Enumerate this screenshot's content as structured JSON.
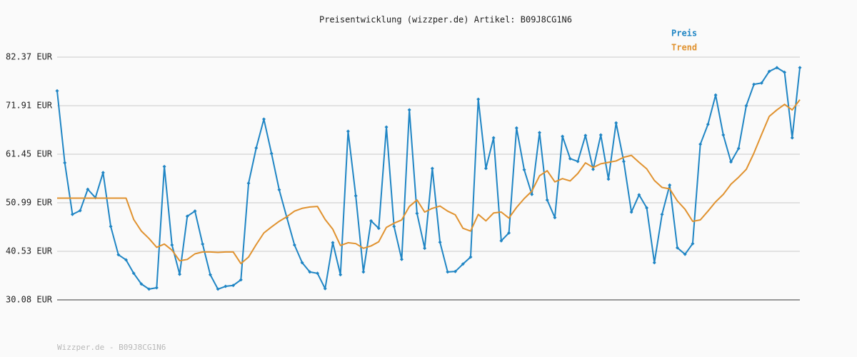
{
  "chart_data": {
    "type": "line",
    "title": "Preisentwicklung (wizzper.de) Artikel: B09J8CG1N6",
    "footer": "Wizzper.de - B09J8CG1N6",
    "ylim": [
      30.08,
      82.37
    ],
    "yticks": [
      {
        "value": 30.08,
        "label": "30.08 EUR"
      },
      {
        "value": 40.53,
        "label": "40.53 EUR"
      },
      {
        "value": 50.99,
        "label": "50.99 EUR"
      },
      {
        "value": 61.45,
        "label": "61.45 EUR"
      },
      {
        "value": 71.91,
        "label": "71.91 EUR"
      },
      {
        "value": 82.37,
        "label": "82.37 EUR"
      }
    ],
    "grid": true,
    "legend": "top-right",
    "series": [
      {
        "name": "Preis",
        "color": "#1f85c4",
        "markers": true,
        "values": [
          75.1,
          59.6,
          48.5,
          49.3,
          53.9,
          52.1,
          57.5,
          45.9,
          39.8,
          38.7,
          35.8,
          33.5,
          32.4,
          32.7,
          58.8,
          41.9,
          35.6,
          48.1,
          49.2,
          42.1,
          35.5,
          32.4,
          33.0,
          33.2,
          34.4,
          55.2,
          62.8,
          69.0,
          61.6,
          53.8,
          47.8,
          41.9,
          38.1,
          36.1,
          35.8,
          32.5,
          42.4,
          35.5,
          66.4,
          52.5,
          36.1,
          47.1,
          45.5,
          67.3,
          45.9,
          38.8,
          71.0,
          48.7,
          41.2,
          58.4,
          42.5,
          36.1,
          36.2,
          37.8,
          39.3,
          73.3,
          58.4,
          65.0,
          42.8,
          44.5,
          67.1,
          58.1,
          52.8,
          66.1,
          51.6,
          47.8,
          65.3,
          60.5,
          59.9,
          65.5,
          58.2,
          65.6,
          56.1,
          68.2,
          59.9,
          49.0,
          52.7,
          49.9,
          38.1,
          48.5,
          54.8,
          41.3,
          39.9,
          42.2,
          63.6,
          67.9,
          74.2,
          65.6,
          59.8,
          62.7,
          71.9,
          76.5,
          76.8,
          79.3,
          80.1,
          79.1,
          65.0,
          80.1
        ]
      },
      {
        "name": "Trend",
        "color": "#e0922f",
        "markers": false,
        "values": [
          52.0,
          52.0,
          52.0,
          52.0,
          52.0,
          52.0,
          52.0,
          52.0,
          52.0,
          52.0,
          47.4,
          44.9,
          43.3,
          41.4,
          42.1,
          40.8,
          38.5,
          38.8,
          40.0,
          40.4,
          40.4,
          40.3,
          40.4,
          40.4,
          37.9,
          39.3,
          42.0,
          44.5,
          45.8,
          47.0,
          48.0,
          49.2,
          49.8,
          50.1,
          50.2,
          47.4,
          45.3,
          41.8,
          42.4,
          42.2,
          41.2,
          41.7,
          42.6,
          45.7,
          46.6,
          47.3,
          50.2,
          51.6,
          49.0,
          49.8,
          50.3,
          49.2,
          48.4,
          45.5,
          44.9,
          48.5,
          47.1,
          48.8,
          49.0,
          47.7,
          50.0,
          51.9,
          53.5,
          56.8,
          57.9,
          55.5,
          56.2,
          55.7,
          57.3,
          59.6,
          58.6,
          59.4,
          59.7,
          60.0,
          60.8,
          61.2,
          59.7,
          58.3,
          55.8,
          54.3,
          54.0,
          51.4,
          49.6,
          47.0,
          47.3,
          49.2,
          51.2,
          52.8,
          55.0,
          56.5,
          58.2,
          61.7,
          65.7,
          69.6,
          71.0,
          72.2,
          71.0,
          73.2
        ]
      }
    ]
  }
}
